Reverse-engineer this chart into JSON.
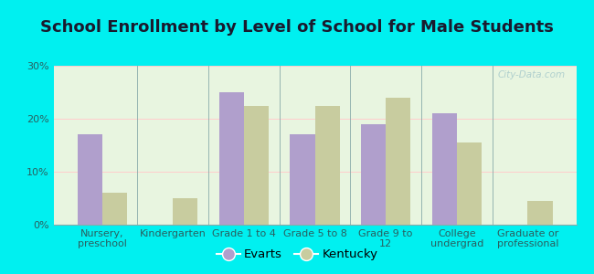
{
  "title": "School Enrollment by Level of School for Male Students",
  "categories": [
    "Nursery,\npreschool",
    "Kindergarten",
    "Grade 1 to 4",
    "Grade 5 to 8",
    "Grade 9 to\n12",
    "College\nundergrad",
    "Graduate or\nprofessional"
  ],
  "evarts": [
    17,
    0,
    25,
    17,
    19,
    21,
    0
  ],
  "kentucky": [
    6,
    5,
    22.5,
    22.5,
    24,
    15.5,
    4.5
  ],
  "evarts_color": "#b09fcc",
  "kentucky_color": "#c8cc9f",
  "background_color": "#00f0f0",
  "plot_bg_color": "#e8f5e0",
  "ylim": [
    0,
    30
  ],
  "yticks": [
    0,
    10,
    20,
    30
  ],
  "ytick_labels": [
    "0%",
    "10%",
    "20%",
    "30%"
  ],
  "legend_labels": [
    "Evarts",
    "Kentucky"
  ],
  "bar_width": 0.35,
  "title_fontsize": 13,
  "tick_fontsize": 8,
  "title_color": "#1a1a2e",
  "tick_color": "#2a6060",
  "watermark_color": "#aacccc"
}
